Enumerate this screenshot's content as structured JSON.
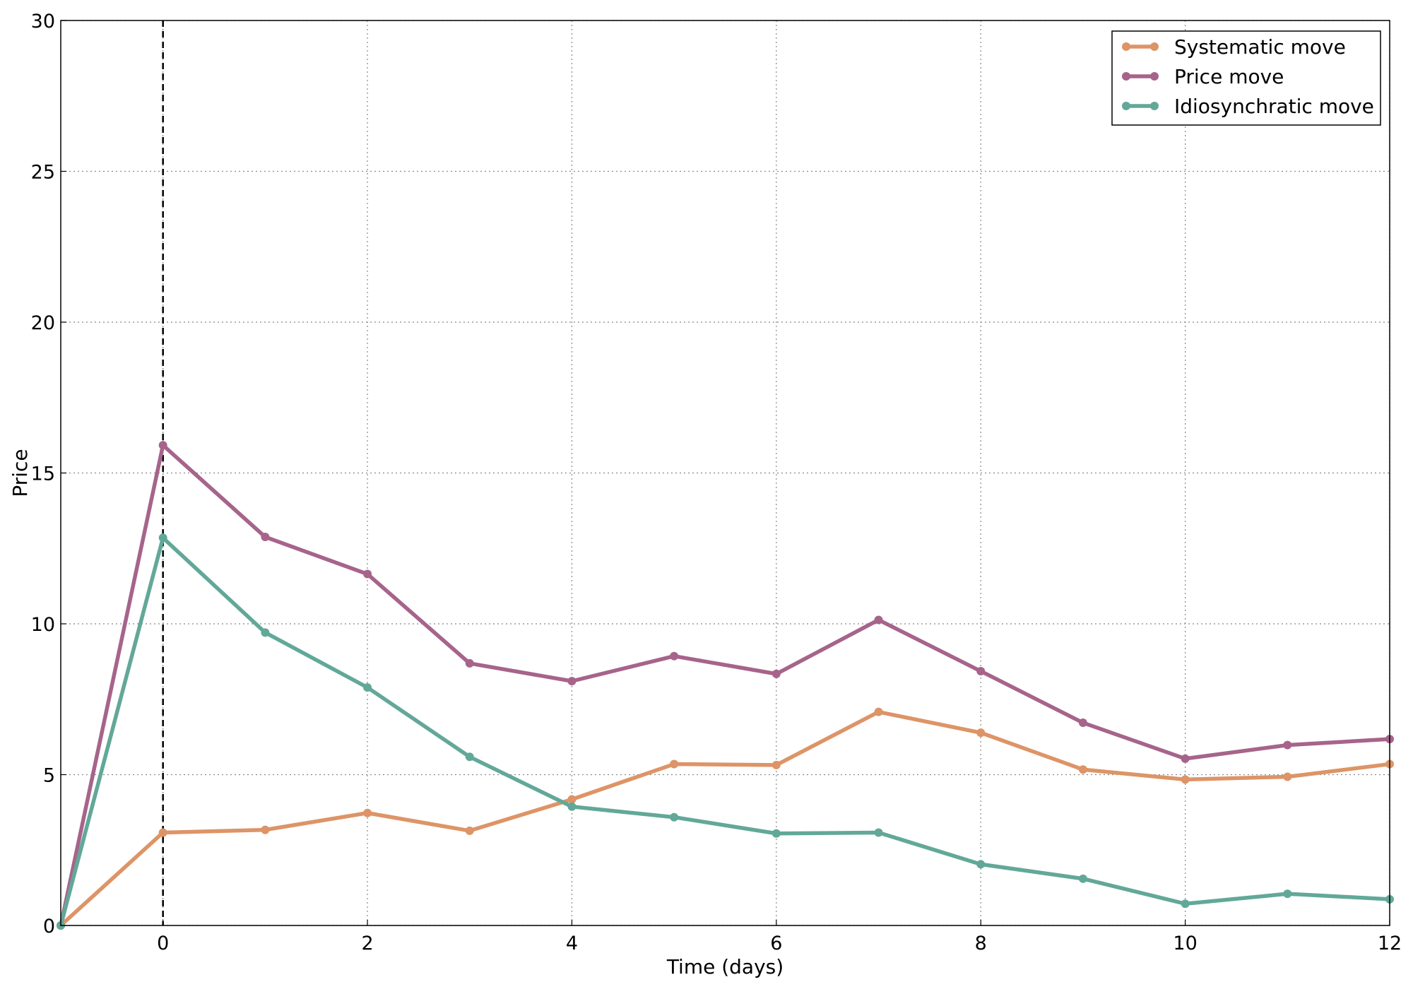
{
  "chart_data": {
    "type": "line",
    "title": "",
    "xlabel": "Time (days)",
    "ylabel": "Price",
    "xlim": [
      -1,
      12
    ],
    "ylim": [
      0,
      30
    ],
    "xticks": [
      0,
      2,
      4,
      6,
      8,
      10,
      12
    ],
    "yticks": [
      0,
      5,
      10,
      15,
      20,
      25,
      30
    ],
    "grid": true,
    "legend_position": "top-right",
    "vline": {
      "x": 0,
      "style": "dashed",
      "color": "#000000"
    },
    "x": [
      -1,
      0,
      1,
      2,
      3,
      4,
      5,
      6,
      7,
      8,
      9,
      10,
      11,
      12
    ],
    "series": [
      {
        "name": "Systematic move",
        "color": "#dd9466",
        "values": [
          0,
          3.08,
          3.17,
          3.73,
          3.14,
          4.18,
          5.35,
          5.32,
          7.08,
          6.39,
          5.17,
          4.84,
          4.93,
          5.35
        ]
      },
      {
        "name": "Price move",
        "color": "#a6648b",
        "values": [
          0,
          15.92,
          12.88,
          11.65,
          8.69,
          8.1,
          8.93,
          8.34,
          10.13,
          8.43,
          6.72,
          5.53,
          5.98,
          6.18
        ]
      },
      {
        "name": "Idiosynchratic move",
        "color": "#62a899",
        "values": [
          0,
          12.85,
          9.71,
          7.89,
          5.59,
          3.94,
          3.59,
          3.05,
          3.08,
          2.03,
          1.55,
          0.72,
          1.05,
          0.87
        ]
      }
    ]
  }
}
